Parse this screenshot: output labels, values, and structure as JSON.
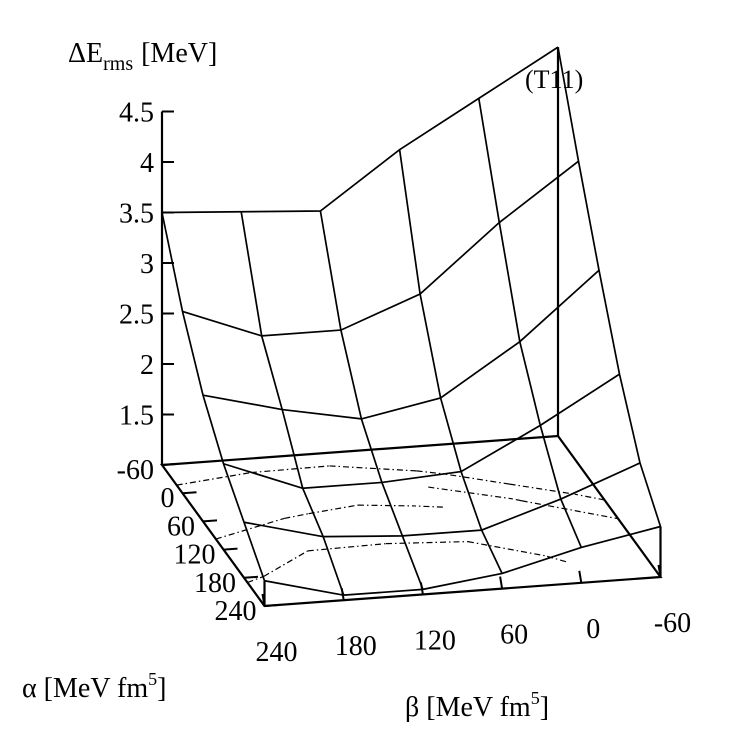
{
  "chart_data": {
    "type": "surface",
    "panel_tag": "(T11)",
    "zlabel": {
      "main": "ΔE",
      "sub": "rms",
      "unit": "[MeV]"
    },
    "xlabel": {
      "main": "α [MeV fm",
      "sup": "5",
      "close": "]"
    },
    "ylabel": {
      "main": "β [MeV fm",
      "sup": "5",
      "close": "]"
    },
    "x_ticks": [
      "-60",
      "0",
      "60",
      "120",
      "180",
      "240"
    ],
    "y_ticks": [
      "240",
      "180",
      "120",
      "60",
      "0",
      "-60"
    ],
    "z_ticks": [
      "1.5",
      "2",
      "2.5",
      "3",
      "3.5",
      "4",
      "4.5"
    ],
    "zlim": [
      1.0,
      4.5
    ],
    "alpha_values": [
      -60,
      0,
      60,
      120,
      180,
      240
    ],
    "beta_values": [
      240,
      180,
      120,
      60,
      0,
      -60
    ],
    "z": [
      [
        3.5,
        3.45,
        3.4,
        3.95,
        4.4,
        4.85
      ],
      [
        2.8,
        2.5,
        2.5,
        2.8,
        3.45,
        4.0
      ],
      [
        2.25,
        2.05,
        1.9,
        2.05,
        2.55,
        3.2
      ],
      [
        1.85,
        1.55,
        1.55,
        1.6,
        2.0,
        2.45
      ],
      [
        1.55,
        1.35,
        1.3,
        1.3,
        1.55,
        1.85
      ],
      [
        1.25,
        1.05,
        1.05,
        1.15,
        1.35,
        1.5
      ]
    ],
    "contour_levels": [
      1.5,
      2.0,
      2.5,
      3.0
    ],
    "grid": false
  }
}
